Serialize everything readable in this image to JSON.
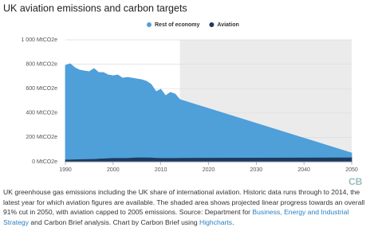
{
  "chart_data": {
    "type": "stacked_area",
    "title": "UK aviation emissions and carbon targets",
    "x": [
      1990,
      1991,
      1992,
      1993,
      1994,
      1995,
      1996,
      1997,
      1998,
      1999,
      2000,
      2001,
      2002,
      2003,
      2004,
      2005,
      2006,
      2007,
      2008,
      2009,
      2010,
      2011,
      2012,
      2013,
      2014,
      2050
    ],
    "series": [
      {
        "name": "Rest of economy",
        "color": "#4f9fd9",
        "values": [
          771,
          784,
          750,
          730,
          722,
          715,
          740,
          705,
          703,
          681,
          673,
          679,
          653,
          660,
          651,
          643,
          636,
          623,
          598,
          541,
          562,
          509,
          536,
          523,
          476,
          35
        ]
      },
      {
        "name": "Aviation",
        "color": "#1c3a5e",
        "values": [
          20,
          20,
          21,
          22,
          23,
          24,
          25,
          27,
          29,
          31,
          33,
          33,
          33,
          33,
          35,
          37,
          37,
          37,
          36,
          34,
          33,
          33,
          33,
          33,
          34,
          37
        ]
      }
    ],
    "xlim": [
      1990,
      2050
    ],
    "xticks": [
      1990,
      2000,
      2010,
      2020,
      2030,
      2040,
      2050
    ],
    "ylim": [
      0,
      1000
    ],
    "yticks": [
      {
        "value": 0,
        "label": "0 MtCO2e"
      },
      {
        "value": 200,
        "label": "200 MtCO2e"
      },
      {
        "value": 400,
        "label": "400 MtCO2e"
      },
      {
        "value": 600,
        "label": "600 MtCO2e"
      },
      {
        "value": 800,
        "label": "800 MtCO2e"
      },
      {
        "value": 1000,
        "label": "1 000 MtCO2e"
      }
    ],
    "grid": true,
    "shade_xlim": [
      2014,
      2050
    ],
    "legend": "top"
  },
  "logo": "CB",
  "caption": {
    "text1": "UK greenhouse gas emissions including the UK share of international aviation. Historic data runs through to 2014, the latest year for which aviation figures are available. The shaded area shows projected linear progress towards an overall 91% cut in 2050, with aviation capped to 2005 emissions. Source: Department for ",
    "link1": "Business, Energy and Industrial Strategy",
    "text2": " and Carbon Brief analysis. Chart by Carbon Brief using ",
    "link2": "Highcharts",
    "text3": "."
  }
}
